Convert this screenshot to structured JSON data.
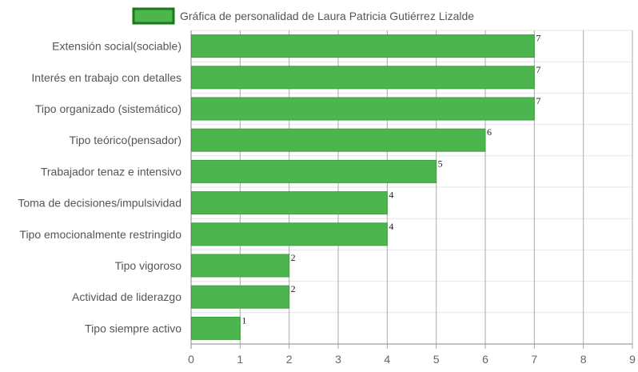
{
  "chart_data": {
    "type": "bar",
    "orientation": "horizontal",
    "legend": {
      "label": "Gráfica de personalidad de Laura Patricia Gutiérrez Lizalde",
      "position": "top"
    },
    "categories": [
      "Extensión social(sociable)",
      "Interés en trabajo con detalles",
      "Tipo organizado (sistemático)",
      "Tipo teórico(pensador)",
      "Trabajador tenaz e intensivo",
      "Toma de decisiones/impulsividad",
      "Tipo emocionalmente restringido",
      "Tipo vigoroso",
      "Actividad de liderazgo",
      "Tipo siempre activo"
    ],
    "values": [
      7,
      7,
      7,
      6,
      5,
      4,
      4,
      2,
      2,
      1
    ],
    "data_labels": [
      "7",
      "7",
      "7",
      "6",
      "5",
      "4",
      "4",
      "2",
      "2",
      "1"
    ],
    "xlim": [
      0,
      9
    ],
    "x_ticks": [
      "0",
      "1",
      "2",
      "3",
      "4",
      "5",
      "6",
      "7",
      "8",
      "9"
    ],
    "grid": true,
    "colors": {
      "bar_fill": "#4db54d",
      "bar_border": "#3e9e3e",
      "legend_border": "#1a7a1a"
    }
  }
}
